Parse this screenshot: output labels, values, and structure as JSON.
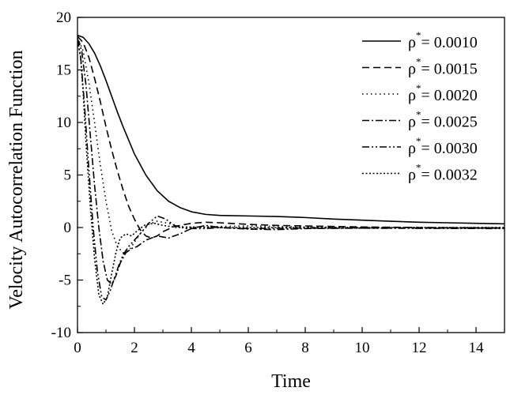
{
  "chart_data": {
    "type": "line",
    "xlabel": "Time",
    "ylabel": "Velocity Autocorrelation Function",
    "xlim": [
      0,
      15
    ],
    "ylim": [
      -10,
      20
    ],
    "xticks": [
      0,
      2,
      4,
      6,
      8,
      10,
      12,
      14
    ],
    "yticks": [
      -10,
      -5,
      0,
      5,
      10,
      15,
      20
    ],
    "grid": false,
    "legend_position": "top-right",
    "series": [
      {
        "name": "ρ* = 0.0010",
        "legend_symbol": "ρ",
        "legend_sup": "*",
        "legend_value": "= 0.0010",
        "dash": "solid",
        "points": [
          [
            0,
            18.3
          ],
          [
            0.2,
            18.1
          ],
          [
            0.4,
            17.5
          ],
          [
            0.6,
            16.6
          ],
          [
            0.8,
            15.4
          ],
          [
            1.0,
            14.0
          ],
          [
            1.2,
            12.5
          ],
          [
            1.4,
            11.0
          ],
          [
            1.6,
            9.6
          ],
          [
            1.8,
            8.3
          ],
          [
            2.0,
            7.0
          ],
          [
            2.4,
            5.0
          ],
          [
            2.8,
            3.5
          ],
          [
            3.2,
            2.5
          ],
          [
            3.6,
            1.9
          ],
          [
            4.0,
            1.5
          ],
          [
            4.5,
            1.25
          ],
          [
            5.0,
            1.15
          ],
          [
            6.0,
            1.1
          ],
          [
            7.0,
            1.05
          ],
          [
            8.0,
            0.95
          ],
          [
            9.0,
            0.8
          ],
          [
            10.0,
            0.7
          ],
          [
            11.0,
            0.6
          ],
          [
            12.0,
            0.5
          ],
          [
            13.0,
            0.45
          ],
          [
            14.0,
            0.4
          ],
          [
            15.0,
            0.35
          ]
        ]
      },
      {
        "name": "ρ* = 0.0015",
        "legend_symbol": "ρ",
        "legend_sup": "*",
        "legend_value": "= 0.0015",
        "dash": "dash",
        "points": [
          [
            0,
            18.2
          ],
          [
            0.2,
            17.6
          ],
          [
            0.4,
            16.2
          ],
          [
            0.6,
            14.2
          ],
          [
            0.8,
            12.0
          ],
          [
            1.0,
            9.6
          ],
          [
            1.2,
            7.4
          ],
          [
            1.4,
            5.4
          ],
          [
            1.6,
            3.6
          ],
          [
            1.8,
            2.0
          ],
          [
            2.0,
            0.8
          ],
          [
            2.2,
            -0.2
          ],
          [
            2.4,
            -0.8
          ],
          [
            2.6,
            -1.0
          ],
          [
            2.8,
            -0.8
          ],
          [
            3.0,
            -0.4
          ],
          [
            3.4,
            0.1
          ],
          [
            4.0,
            0.4
          ],
          [
            4.5,
            0.5
          ],
          [
            5.0,
            0.45
          ],
          [
            6.0,
            0.3
          ],
          [
            7.0,
            0.2
          ],
          [
            8.0,
            0.15
          ],
          [
            9.0,
            0.1
          ],
          [
            10.0,
            0.05
          ],
          [
            12.0,
            0.0
          ],
          [
            15.0,
            -0.05
          ]
        ]
      },
      {
        "name": "ρ* = 0.0020",
        "legend_symbol": "ρ",
        "legend_sup": "*",
        "legend_value": "= 0.0020",
        "dash": "dot",
        "points": [
          [
            0,
            18.1
          ],
          [
            0.2,
            16.8
          ],
          [
            0.4,
            13.8
          ],
          [
            0.6,
            10.0
          ],
          [
            0.8,
            6.0
          ],
          [
            1.0,
            2.5
          ],
          [
            1.2,
            -0.3
          ],
          [
            1.4,
            -1.8
          ],
          [
            1.6,
            -2.4
          ],
          [
            1.8,
            -2.2
          ],
          [
            2.0,
            -1.4
          ],
          [
            2.2,
            -0.6
          ],
          [
            2.5,
            0.3
          ],
          [
            2.8,
            0.6
          ],
          [
            3.2,
            0.4
          ],
          [
            3.6,
            0.1
          ],
          [
            4.0,
            0.0
          ],
          [
            5.0,
            0.1
          ],
          [
            6.0,
            0.15
          ],
          [
            8.0,
            0.05
          ],
          [
            10.0,
            0.0
          ],
          [
            15.0,
            0.0
          ]
        ]
      },
      {
        "name": "ρ* = 0.0025",
        "legend_symbol": "ρ",
        "legend_sup": "*",
        "legend_value": "= 0.0025",
        "dash": "dashdot",
        "points": [
          [
            0,
            18.0
          ],
          [
            0.15,
            16.8
          ],
          [
            0.3,
            13.5
          ],
          [
            0.45,
            8.8
          ],
          [
            0.6,
            4.0
          ],
          [
            0.75,
            0.0
          ],
          [
            0.9,
            -3.2
          ],
          [
            1.05,
            -5.0
          ],
          [
            1.2,
            -5.4
          ],
          [
            1.35,
            -4.6
          ],
          [
            1.5,
            -3.4
          ],
          [
            1.7,
            -2.4
          ],
          [
            1.9,
            -2.0
          ],
          [
            2.1,
            -1.8
          ],
          [
            2.4,
            -1.2
          ],
          [
            2.8,
            -0.8
          ],
          [
            3.2,
            -1.0
          ],
          [
            3.6,
            -0.6
          ],
          [
            4.0,
            -0.1
          ],
          [
            4.5,
            0.2
          ],
          [
            5.0,
            0.0
          ],
          [
            6.0,
            -0.15
          ],
          [
            7.0,
            -0.2
          ],
          [
            8.0,
            -0.1
          ],
          [
            10.0,
            -0.05
          ],
          [
            15.0,
            -0.05
          ]
        ]
      },
      {
        "name": "ρ* = 0.0030",
        "legend_symbol": "ρ",
        "legend_sup": "*",
        "legend_value": "= 0.0030",
        "dash": "dashdotdot",
        "points": [
          [
            0,
            17.9
          ],
          [
            0.12,
            16.0
          ],
          [
            0.25,
            11.5
          ],
          [
            0.4,
            5.5
          ],
          [
            0.55,
            0.0
          ],
          [
            0.7,
            -4.2
          ],
          [
            0.85,
            -6.6
          ],
          [
            1.0,
            -6.9
          ],
          [
            1.15,
            -6.0
          ],
          [
            1.3,
            -4.8
          ],
          [
            1.45,
            -3.6
          ],
          [
            1.6,
            -2.6
          ],
          [
            1.8,
            -1.8
          ],
          [
            2.0,
            -1.2
          ],
          [
            2.2,
            -0.6
          ],
          [
            2.5,
            0.4
          ],
          [
            2.8,
            1.1
          ],
          [
            3.1,
            0.8
          ],
          [
            3.4,
            0.2
          ],
          [
            3.8,
            -0.1
          ],
          [
            4.5,
            -0.1
          ],
          [
            5.0,
            0.0
          ],
          [
            6.0,
            -0.1
          ],
          [
            8.0,
            -0.05
          ],
          [
            15.0,
            -0.1
          ]
        ]
      },
      {
        "name": "ρ* = 0.0032",
        "legend_symbol": "ρ",
        "legend_sup": "*",
        "legend_value": "= 0.0032",
        "dash": "dotdense",
        "points": [
          [
            0,
            17.7
          ],
          [
            0.1,
            16.5
          ],
          [
            0.2,
            12.8
          ],
          [
            0.3,
            8.0
          ],
          [
            0.45,
            2.0
          ],
          [
            0.6,
            -3.0
          ],
          [
            0.75,
            -6.4
          ],
          [
            0.9,
            -7.3
          ],
          [
            1.05,
            -6.6
          ],
          [
            1.2,
            -4.4
          ],
          [
            1.35,
            -2.4
          ],
          [
            1.5,
            -1.0
          ],
          [
            1.7,
            -0.6
          ],
          [
            1.9,
            -0.8
          ],
          [
            2.1,
            -0.3
          ],
          [
            2.4,
            0.3
          ],
          [
            2.7,
            0.4
          ],
          [
            3.0,
            0.2
          ],
          [
            3.5,
            0.0
          ],
          [
            4.0,
            0.05
          ],
          [
            5.0,
            0.0
          ],
          [
            8.0,
            0.0
          ],
          [
            15.0,
            0.0
          ]
        ]
      }
    ]
  }
}
